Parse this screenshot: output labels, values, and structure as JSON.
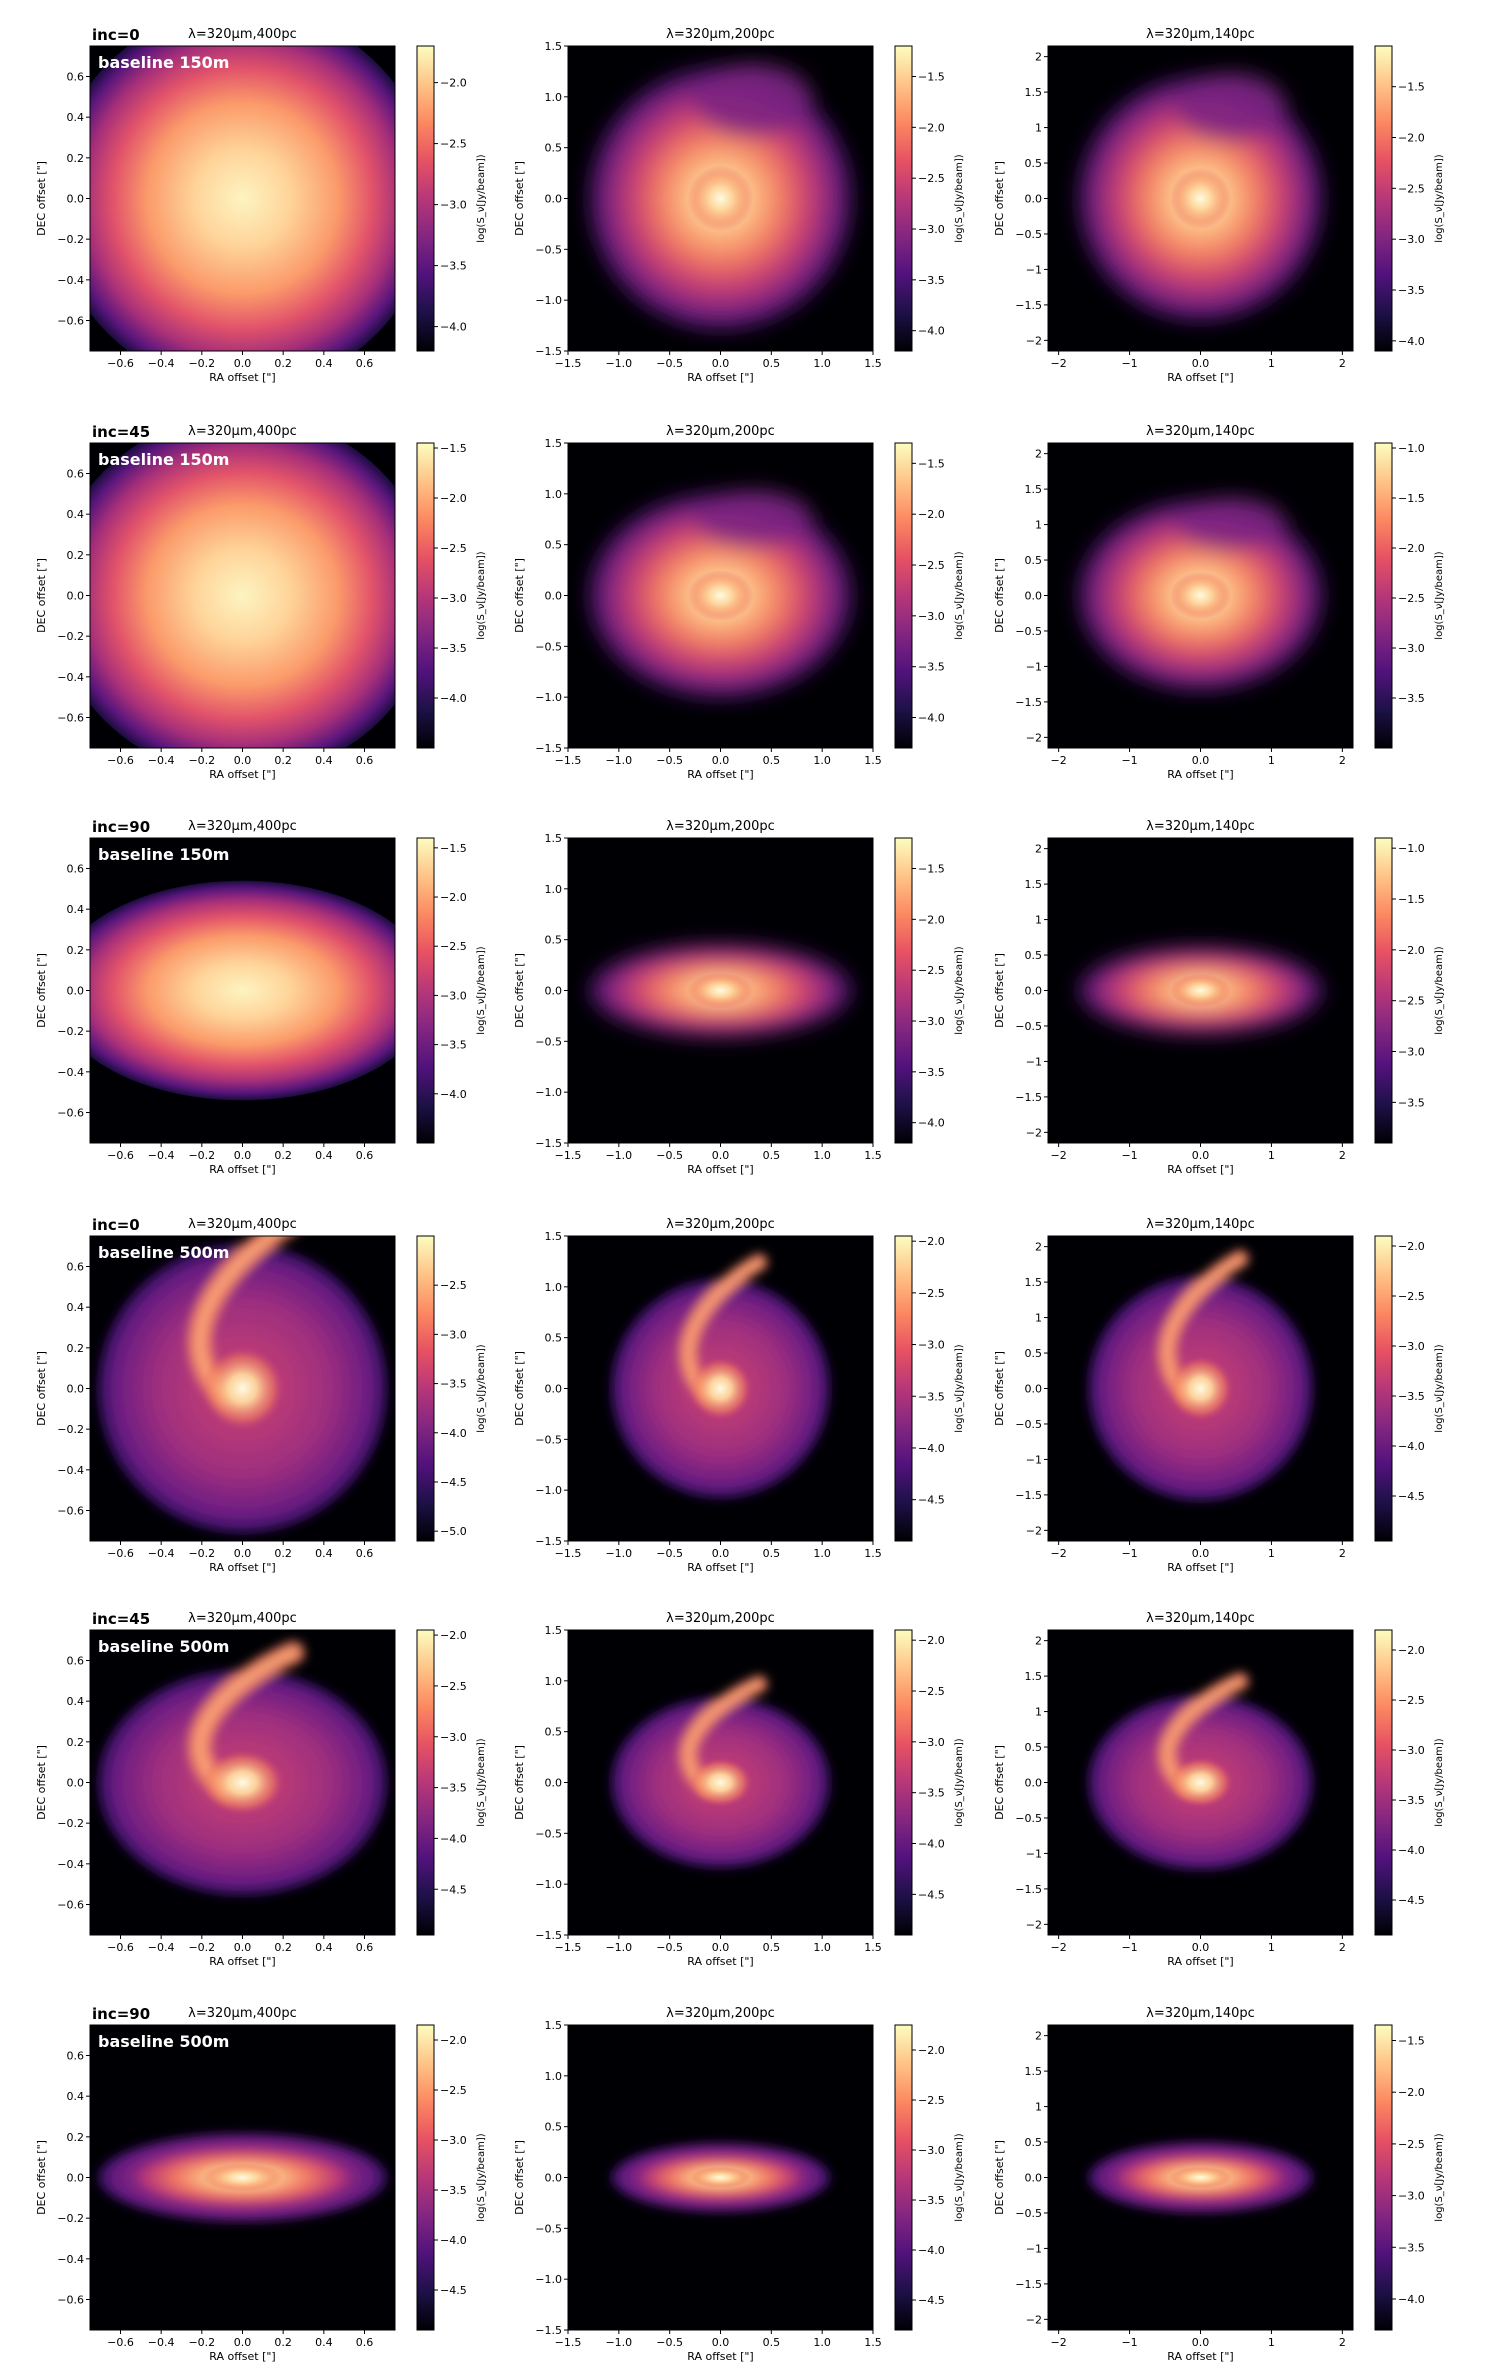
{
  "figure": {
    "axis_labels": {
      "x": "RA offset [\"]",
      "y": "DEC offset [\"]",
      "colorbar": "log(S_ν[Jy/beam])"
    },
    "wavelength_prefix": "λ=320μm,",
    "columns": [
      {
        "distance": "400pc",
        "range": [
          -0.75,
          0.75
        ],
        "xticks": [
          -0.6,
          -0.4,
          -0.2,
          0.0,
          0.2,
          0.4,
          0.6
        ],
        "yticks": [
          -0.6,
          -0.4,
          -0.2,
          0.0,
          0.2,
          0.4,
          0.6
        ]
      },
      {
        "distance": "200pc",
        "range": [
          -1.5,
          1.5
        ],
        "xticks": [
          -1.5,
          -1.0,
          -0.5,
          0.0,
          0.5,
          1.0,
          1.5
        ],
        "yticks": [
          -1.5,
          -1.0,
          -0.5,
          0.0,
          0.5,
          1.0,
          1.5
        ]
      },
      {
        "distance": "140pc",
        "range": [
          -2.15,
          2.15
        ],
        "xticks": [
          -2,
          -1,
          0,
          1,
          2
        ],
        "yticks": [
          -2.0,
          -1.5,
          -1.0,
          -0.5,
          0.0,
          0.5,
          1.0,
          1.5,
          2.0
        ]
      }
    ],
    "colormap": [
      "#000004",
      "#1d1147",
      "#51127c",
      "#832681",
      "#b73779",
      "#e75263",
      "#fc8961",
      "#fec488",
      "#fcfdbf"
    ]
  },
  "chart_data": [
    {
      "type": "heatmap",
      "row": 0,
      "col": 0,
      "inc_label": "inc=0",
      "baseline_label": "baseline  150m",
      "title": "λ=320μm,400pc",
      "xlim": [
        -0.75,
        0.75
      ],
      "ylim": [
        -0.75,
        0.75
      ],
      "colorbar_range": [
        -4.2,
        -1.7
      ],
      "colorbar_ticks": [
        -4.0,
        -3.5,
        -3.0,
        -2.5,
        -2.0
      ]
    },
    {
      "type": "heatmap",
      "row": 0,
      "col": 1,
      "title": "λ=320μm,200pc",
      "xlim": [
        -1.5,
        1.5
      ],
      "ylim": [
        -1.5,
        1.5
      ],
      "colorbar_range": [
        -4.2,
        -1.2
      ],
      "colorbar_ticks": [
        -4.0,
        -3.5,
        -3.0,
        -2.5,
        -2.0,
        -1.5
      ]
    },
    {
      "type": "heatmap",
      "row": 0,
      "col": 2,
      "title": "λ=320μm,140pc",
      "xlim": [
        -2.15,
        2.15
      ],
      "ylim": [
        -2.15,
        2.15
      ],
      "colorbar_range": [
        -4.1,
        -1.1
      ],
      "colorbar_ticks": [
        -4.0,
        -3.5,
        -3.0,
        -2.5,
        -2.0,
        -1.5
      ]
    },
    {
      "type": "heatmap",
      "row": 1,
      "col": 0,
      "inc_label": "inc=45",
      "baseline_label": "baseline  150m",
      "title": "λ=320μm,400pc",
      "xlim": [
        -0.75,
        0.75
      ],
      "ylim": [
        -0.75,
        0.75
      ],
      "colorbar_range": [
        -4.5,
        -1.45
      ],
      "colorbar_ticks": [
        -4.0,
        -3.5,
        -3.0,
        -2.5,
        -2.0,
        -1.5
      ]
    },
    {
      "type": "heatmap",
      "row": 1,
      "col": 1,
      "title": "λ=320μm,200pc",
      "xlim": [
        -1.5,
        1.5
      ],
      "ylim": [
        -1.5,
        1.5
      ],
      "colorbar_range": [
        -4.3,
        -1.3
      ],
      "colorbar_ticks": [
        -4.0,
        -3.5,
        -3.0,
        -2.5,
        -2.0,
        -1.5
      ]
    },
    {
      "type": "heatmap",
      "row": 1,
      "col": 2,
      "title": "λ=320μm,140pc",
      "xlim": [
        -2.15,
        2.15
      ],
      "ylim": [
        -2.15,
        2.15
      ],
      "colorbar_range": [
        -4.0,
        -0.95
      ],
      "colorbar_ticks": [
        -3.5,
        -3.0,
        -2.5,
        -2.0,
        -1.5,
        -1.0
      ]
    },
    {
      "type": "heatmap",
      "row": 2,
      "col": 0,
      "inc_label": "inc=90",
      "baseline_label": "baseline  150m",
      "title": "λ=320μm,400pc",
      "xlim": [
        -0.75,
        0.75
      ],
      "ylim": [
        -0.75,
        0.75
      ],
      "colorbar_range": [
        -4.5,
        -1.4
      ],
      "colorbar_ticks": [
        -4.0,
        -3.5,
        -3.0,
        -2.5,
        -2.0,
        -1.5
      ]
    },
    {
      "type": "heatmap",
      "row": 2,
      "col": 1,
      "title": "λ=320μm,200pc",
      "xlim": [
        -1.5,
        1.5
      ],
      "ylim": [
        -1.5,
        1.5
      ],
      "colorbar_range": [
        -4.2,
        -1.2
      ],
      "colorbar_ticks": [
        -4.0,
        -3.5,
        -3.0,
        -2.5,
        -2.0,
        -1.5
      ]
    },
    {
      "type": "heatmap",
      "row": 2,
      "col": 2,
      "title": "λ=320μm,140pc",
      "xlim": [
        -2.15,
        2.15
      ],
      "ylim": [
        -2.15,
        2.15
      ],
      "colorbar_range": [
        -3.9,
        -0.9
      ],
      "colorbar_ticks": [
        -3.5,
        -3.0,
        -2.5,
        -2.0,
        -1.5,
        -1.0
      ]
    },
    {
      "type": "heatmap",
      "row": 3,
      "col": 0,
      "inc_label": "inc=0",
      "baseline_label": "baseline  500m",
      "title": "λ=320μm,400pc",
      "xlim": [
        -0.75,
        0.75
      ],
      "ylim": [
        -0.75,
        0.75
      ],
      "colorbar_range": [
        -5.1,
        -2.0
      ],
      "colorbar_ticks": [
        -5.0,
        -4.5,
        -4.0,
        -3.5,
        -3.0,
        -2.5
      ]
    },
    {
      "type": "heatmap",
      "row": 3,
      "col": 1,
      "title": "λ=320μm,200pc",
      "xlim": [
        -1.5,
        1.5
      ],
      "ylim": [
        -1.5,
        1.5
      ],
      "colorbar_range": [
        -4.9,
        -1.95
      ],
      "colorbar_ticks": [
        -4.5,
        -4.0,
        -3.5,
        -3.0,
        -2.5,
        -2.0
      ]
    },
    {
      "type": "heatmap",
      "row": 3,
      "col": 2,
      "title": "λ=320μm,140pc",
      "xlim": [
        -2.15,
        2.15
      ],
      "ylim": [
        -2.15,
        2.15
      ],
      "colorbar_range": [
        -4.95,
        -1.9
      ],
      "colorbar_ticks": [
        -4.5,
        -4.0,
        -3.5,
        -3.0,
        -2.5,
        -2.0
      ]
    },
    {
      "type": "heatmap",
      "row": 4,
      "col": 0,
      "inc_label": "inc=45",
      "baseline_label": "baseline  500m",
      "title": "λ=320μm,400pc",
      "xlim": [
        -0.75,
        0.75
      ],
      "ylim": [
        -0.75,
        0.75
      ],
      "colorbar_range": [
        -4.95,
        -1.95
      ],
      "colorbar_ticks": [
        -4.5,
        -4.0,
        -3.5,
        -3.0,
        -2.5,
        -2.0
      ]
    },
    {
      "type": "heatmap",
      "row": 4,
      "col": 1,
      "title": "λ=320μm,200pc",
      "xlim": [
        -1.5,
        1.5
      ],
      "ylim": [
        -1.5,
        1.5
      ],
      "colorbar_range": [
        -4.9,
        -1.9
      ],
      "colorbar_ticks": [
        -4.5,
        -4.0,
        -3.5,
        -3.0,
        -2.5,
        -2.0
      ]
    },
    {
      "type": "heatmap",
      "row": 4,
      "col": 2,
      "title": "λ=320μm,140pc",
      "xlim": [
        -2.15,
        2.15
      ],
      "ylim": [
        -2.15,
        2.15
      ],
      "colorbar_range": [
        -4.85,
        -1.8
      ],
      "colorbar_ticks": [
        -4.5,
        -4.0,
        -3.5,
        -3.0,
        -2.5,
        -2.0
      ]
    },
    {
      "type": "heatmap",
      "row": 5,
      "col": 0,
      "inc_label": "inc=90",
      "baseline_label": "baseline  500m",
      "title": "λ=320μm,400pc",
      "xlim": [
        -0.75,
        0.75
      ],
      "ylim": [
        -0.75,
        0.75
      ],
      "colorbar_range": [
        -4.9,
        -1.85
      ],
      "colorbar_ticks": [
        -4.5,
        -4.0,
        -3.5,
        -3.0,
        -2.5,
        -2.0
      ]
    },
    {
      "type": "heatmap",
      "row": 5,
      "col": 1,
      "title": "λ=320μm,200pc",
      "xlim": [
        -1.5,
        1.5
      ],
      "ylim": [
        -1.5,
        1.5
      ],
      "colorbar_range": [
        -4.8,
        -1.75
      ],
      "colorbar_ticks": [
        -4.5,
        -4.0,
        -3.5,
        -3.0,
        -2.5,
        -2.0
      ]
    },
    {
      "type": "heatmap",
      "row": 5,
      "col": 2,
      "title": "λ=320μm,140pc",
      "xlim": [
        -2.15,
        2.15
      ],
      "ylim": [
        -2.15,
        2.15
      ],
      "colorbar_range": [
        -4.3,
        -1.35
      ],
      "colorbar_ticks": [
        -4.0,
        -3.5,
        -3.0,
        -2.5,
        -2.0,
        -1.5
      ]
    }
  ]
}
